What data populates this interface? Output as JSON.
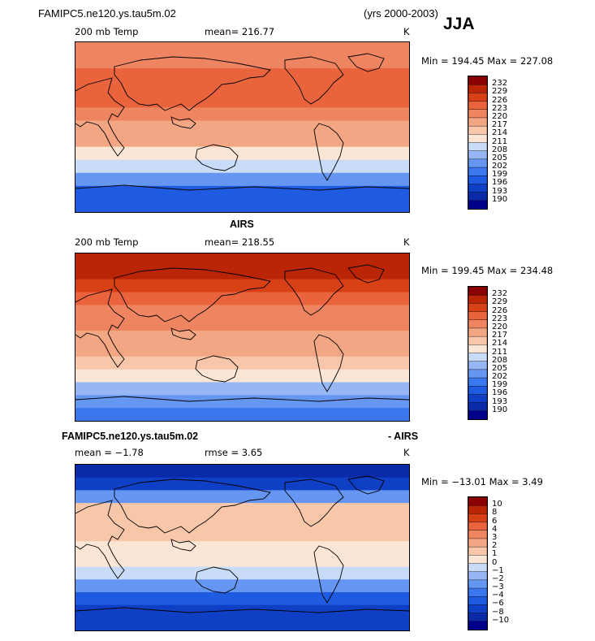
{
  "header": {
    "case_name": "FAMIPC5.ne120.ys.tau5m.02",
    "years": "(yrs 2000-2003)",
    "season": "JJA"
  },
  "panels": [
    {
      "title": "",
      "variable": "200 mb Temp",
      "stat": "mean= 216.77",
      "unit": "K",
      "minmax": "Min = 194.45 Max = 227.08"
    },
    {
      "title": "AIRS",
      "variable": "200 mb Temp",
      "stat": "mean= 218.55",
      "unit": "K",
      "minmax": "Min = 199.45 Max = 234.48"
    },
    {
      "title_left": "FAMIPC5.ne120.ys.tau5m.02",
      "title_right": "- AIRS",
      "stat": "mean =  −1.78",
      "rmse": "rmse =    3.65",
      "unit": "K",
      "minmax": "Min = −13.01 Max =    3.49"
    }
  ],
  "colors": {
    "temp_scale": [
      "#00008b",
      "#0a2aa8",
      "#0f3fc4",
      "#1f5be0",
      "#3b78ef",
      "#6596f2",
      "#96b7f4",
      "#c8dbf7",
      "#fbe6d6",
      "#f8c7aa",
      "#f3a683",
      "#ef8560",
      "#e9643c",
      "#d84016",
      "#b92505",
      "#8b0000"
    ],
    "diff_scale": [
      "#00008b",
      "#0a2aa8",
      "#0f3fc4",
      "#1f5be0",
      "#3b78ef",
      "#6596f2",
      "#96b7f4",
      "#c8dbf7",
      "#fbe6d6",
      "#f8c7aa",
      "#f3a683",
      "#ef8560",
      "#e9643c",
      "#d84016",
      "#b92505",
      "#8b0000"
    ]
  },
  "chart_data": [
    {
      "type": "heatmap",
      "title": "FAMIPC5.ne120.ys.tau5m.02 200 mb Temp JJA",
      "mean": 216.77,
      "min": 194.45,
      "max": 227.08,
      "unit": "K",
      "colorbar_levels": [
        "232",
        "229",
        "226",
        "223",
        "220",
        "217",
        "214",
        "211",
        "208",
        "205",
        "202",
        "199",
        "196",
        "193",
        "190"
      ],
      "zonal_profile_values": [
        220,
        222,
        224,
        225,
        224,
        221,
        219,
        217,
        213,
        208,
        202,
        198,
        196
      ]
    },
    {
      "type": "heatmap",
      "title": "AIRS 200 mb Temp JJA",
      "mean": 218.55,
      "min": 199.45,
      "max": 234.48,
      "unit": "K",
      "colorbar_levels": [
        "232",
        "229",
        "226",
        "223",
        "220",
        "217",
        "214",
        "211",
        "208",
        "205",
        "202",
        "199",
        "196",
        "193",
        "190"
      ],
      "zonal_profile_values": [
        231,
        229,
        227,
        223,
        221,
        220,
        219,
        218,
        214,
        211,
        207,
        204,
        201
      ]
    },
    {
      "type": "heatmap",
      "title": "FAMIPC5.ne120.ys.tau5m.02 - AIRS",
      "mean": -1.78,
      "rmse": 3.65,
      "min": -13.01,
      "max": 3.49,
      "unit": "K",
      "colorbar_levels": [
        "10",
        "8",
        "6",
        "4",
        "3",
        "2",
        "1",
        "0",
        "−1",
        "−2",
        "−3",
        "−4",
        "−6",
        "−8",
        "−10"
      ],
      "zonal_profile_values": [
        -9,
        -7,
        -3,
        1,
        1.5,
        1,
        0.5,
        0.5,
        -1,
        -3,
        -5,
        -7,
        -8
      ]
    }
  ]
}
